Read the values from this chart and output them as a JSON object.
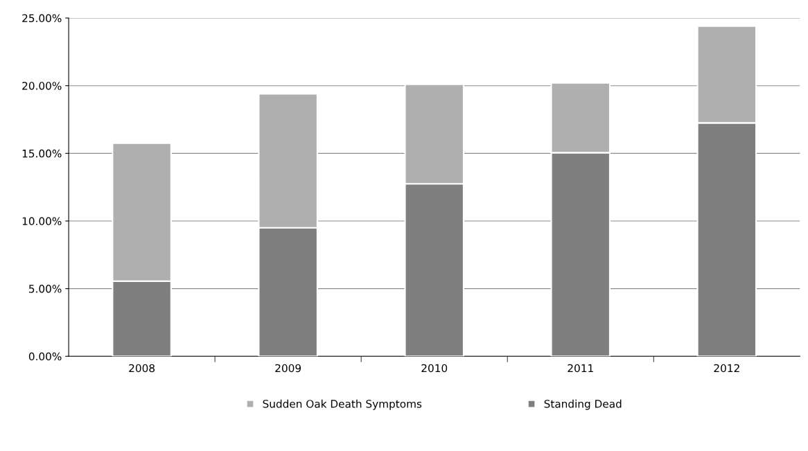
{
  "chart_data": {
    "type": "bar",
    "stacked": true,
    "categories": [
      "2008",
      "2009",
      "2010",
      "2011",
      "2012"
    ],
    "series": [
      {
        "name": "Standing Dead",
        "color": "#7f7f7f",
        "values": [
          5.55,
          9.5,
          12.75,
          15.05,
          17.25
        ]
      },
      {
        "name": "Sudden Oak Death Symptoms",
        "color": "#afafaf",
        "values": [
          10.2,
          9.9,
          7.35,
          5.15,
          7.15
        ]
      }
    ],
    "ylim": [
      0,
      25
    ],
    "yticks": [
      {
        "value": 0,
        "label": "0.00%"
      },
      {
        "value": 5,
        "label": "5.00%"
      },
      {
        "value": 10,
        "label": "10.00%"
      },
      {
        "value": 15,
        "label": "15.00%"
      },
      {
        "value": 20,
        "label": "20.00%"
      },
      {
        "value": 25,
        "label": "25.00%"
      }
    ],
    "grid": "y",
    "legend": "bottom"
  }
}
